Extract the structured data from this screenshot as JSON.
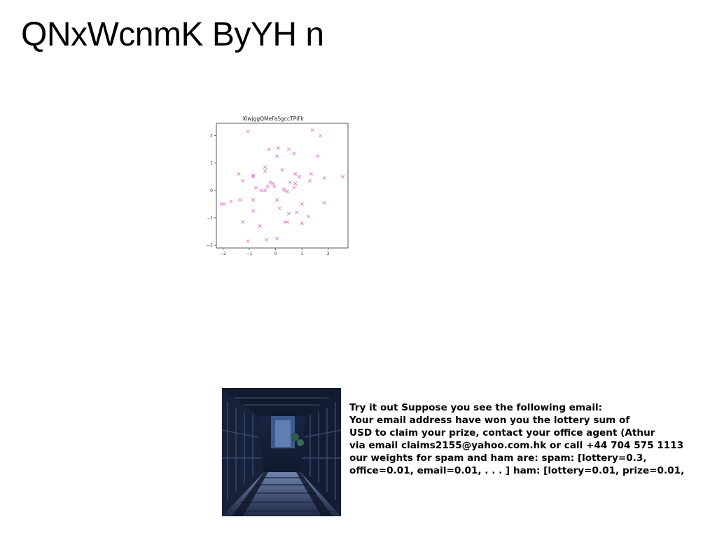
{
  "title": "QNxWcnmK ByYH n",
  "chart_data": {
    "type": "scatter",
    "title": "XlwjggQMeFaSgccTPiFk",
    "xlabel": "",
    "ylabel": "",
    "xlim": [
      -2.25,
      2.75
    ],
    "ylim": [
      -2.1,
      2.45
    ],
    "xticks": [
      -2,
      -1,
      0,
      1,
      2
    ],
    "yticks": [
      -2,
      -1,
      0,
      1,
      2
    ],
    "xtick_labels": [
      "−2",
      "−1",
      "0",
      "1",
      "2"
    ],
    "ytick_labels": [
      "−2",
      "−1",
      "0",
      "1",
      "2"
    ],
    "grid": false,
    "marker": "x",
    "color": "#e07ad6",
    "points": [
      [
        -1.05,
        2.15
      ],
      [
        1.4,
        2.2
      ],
      [
        1.7,
        2.0
      ],
      [
        -0.25,
        1.5
      ],
      [
        0.1,
        1.55
      ],
      [
        0.5,
        1.5
      ],
      [
        0.7,
        1.35
      ],
      [
        0.05,
        1.25
      ],
      [
        1.6,
        1.25
      ],
      [
        -0.4,
        0.85
      ],
      [
        -0.4,
        0.7
      ],
      [
        0.25,
        0.75
      ],
      [
        -1.4,
        0.6
      ],
      [
        -0.85,
        0.55
      ],
      [
        -0.85,
        0.5
      ],
      [
        -1.25,
        0.35
      ],
      [
        0.75,
        0.6
      ],
      [
        0.9,
        0.5
      ],
      [
        1.35,
        0.6
      ],
      [
        2.55,
        0.5
      ],
      [
        1.85,
        0.45
      ],
      [
        1.3,
        0.35
      ],
      [
        0.55,
        0.3
      ],
      [
        0.75,
        0.25
      ],
      [
        -0.2,
        0.3
      ],
      [
        -0.1,
        0.25
      ],
      [
        -0.3,
        0.15
      ],
      [
        -0.05,
        0.15
      ],
      [
        -0.75,
        0.1
      ],
      [
        -0.55,
        0.0
      ],
      [
        -0.4,
        0.0
      ],
      [
        0.3,
        0.05
      ],
      [
        0.35,
        0.0
      ],
      [
        0.45,
        -0.05
      ],
      [
        0.7,
        0.1
      ],
      [
        -1.95,
        -0.5
      ],
      [
        -2.05,
        -0.5
      ],
      [
        -1.7,
        -0.4
      ],
      [
        -1.35,
        -0.35
      ],
      [
        -0.85,
        -0.35
      ],
      [
        0.05,
        -0.35
      ],
      [
        0.15,
        -0.65
      ],
      [
        1.85,
        -0.45
      ],
      [
        1.0,
        -0.5
      ],
      [
        -0.85,
        -0.75
      ],
      [
        0.5,
        -0.85
      ],
      [
        0.8,
        -0.8
      ],
      [
        1.25,
        -0.95
      ],
      [
        -1.25,
        -1.15
      ],
      [
        -0.6,
        -1.3
      ],
      [
        0.35,
        -1.15
      ],
      [
        0.45,
        -1.15
      ],
      [
        1.0,
        -1.2
      ],
      [
        -1.05,
        -1.85
      ],
      [
        -0.35,
        -1.8
      ],
      [
        0.05,
        -1.75
      ]
    ]
  },
  "photo": {
    "description_icon": "night-wooden-walkway-photo",
    "colors": {
      "sky": "#2b3f6b",
      "dark": "#0d1424",
      "wood": "#4b5a7a",
      "light": "#9fb3d6"
    }
  },
  "text_block": {
    "lines": [
      "Try it out Suppose you see the following email:",
      "Your email address have won you the lottery sum of",
      "USD to claim your prize, contact your office agent (Athur",
      "via email claims2155@yahoo.com.hk or call +44 704 575 1113",
      "our weights for spam and ham are: spam: [lottery=0.3,",
      "office=0.01, email=0.01, . . . ] ham: [lottery=0.01, prize=0.01,"
    ]
  }
}
